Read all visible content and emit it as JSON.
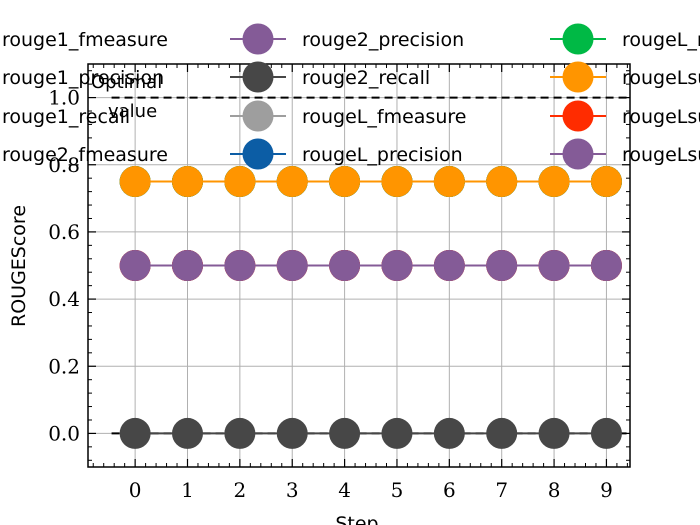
{
  "chart_data": {
    "type": "line",
    "xlabel": "Step",
    "ylabel": "ROUGEScore",
    "x": [
      0,
      1,
      2,
      3,
      4,
      5,
      6,
      7,
      8,
      9
    ],
    "xlim": [
      -0.9,
      9.45
    ],
    "ylim": [
      -0.1,
      1.1
    ],
    "xticks": [
      "0",
      "1",
      "2",
      "3",
      "4",
      "5",
      "6",
      "7",
      "8",
      "9"
    ],
    "yticks": [
      "0.0",
      "0.2",
      "0.4",
      "0.6",
      "0.8",
      "1.0"
    ],
    "grid": true,
    "legend_position": "top",
    "series": [
      {
        "name": "rouge1_fmeasure",
        "color": "#0C5DA5",
        "values": [
          0.75,
          0.75,
          0.75,
          0.75,
          0.75,
          0.75,
          0.75,
          0.75,
          0.75,
          0.75
        ]
      },
      {
        "name": "rouge1_precision",
        "color": "#00B945",
        "values": [
          0.75,
          0.75,
          0.75,
          0.75,
          0.75,
          0.75,
          0.75,
          0.75,
          0.75,
          0.75
        ]
      },
      {
        "name": "rouge1_recall",
        "color": "#FF9500",
        "values": [
          0.75,
          0.75,
          0.75,
          0.75,
          0.75,
          0.75,
          0.75,
          0.75,
          0.75,
          0.75
        ]
      },
      {
        "name": "rouge2_fmeasure",
        "color": "#FF2C00",
        "values": [
          0.5,
          0.5,
          0.5,
          0.5,
          0.5,
          0.5,
          0.5,
          0.5,
          0.5,
          0.5
        ]
      },
      {
        "name": "rouge2_precision",
        "color": "#845B97",
        "values": [
          0.5,
          0.5,
          0.5,
          0.5,
          0.5,
          0.5,
          0.5,
          0.5,
          0.5,
          0.5
        ]
      },
      {
        "name": "rouge2_recall",
        "color": "#474747",
        "values": [
          0.0,
          0.0,
          0.0,
          0.0,
          0.0,
          0.0,
          0.0,
          0.0,
          0.0,
          0.0
        ]
      },
      {
        "name": "rougeL_fmeasure",
        "color": "#9E9E9E",
        "values": [
          0.75,
          0.75,
          0.75,
          0.75,
          0.75,
          0.75,
          0.75,
          0.75,
          0.75,
          0.75
        ]
      },
      {
        "name": "rougeL_precision",
        "color": "#0C5DA5",
        "values": [
          0.75,
          0.75,
          0.75,
          0.75,
          0.75,
          0.75,
          0.75,
          0.75,
          0.75,
          0.75
        ]
      },
      {
        "name": "rougeL_recall",
        "legend_text": "rougeL_r",
        "color": "#00B945",
        "values": [
          0.75,
          0.75,
          0.75,
          0.75,
          0.75,
          0.75,
          0.75,
          0.75,
          0.75,
          0.75
        ]
      },
      {
        "name": "rougeLsum_fmeasure",
        "legend_text": "rougeLsum",
        "color": "#FF9500",
        "values": [
          0.75,
          0.75,
          0.75,
          0.75,
          0.75,
          0.75,
          0.75,
          0.75,
          0.75,
          0.75
        ]
      },
      {
        "name": "rougeLsum_precision",
        "legend_text": "rougeLsu",
        "color": "#FF2C00",
        "values": [
          0.5,
          0.5,
          0.5,
          0.5,
          0.5,
          0.5,
          0.5,
          0.5,
          0.5,
          0.5
        ]
      },
      {
        "name": "rougeLsum_recall",
        "legend_text": "rougeLsu",
        "color": "#845B97",
        "values": [
          0.5,
          0.5,
          0.5,
          0.5,
          0.5,
          0.5,
          0.5,
          0.5,
          0.5,
          0.5
        ]
      }
    ],
    "legend": [
      {
        "label": "rouge1_fmeasure",
        "color": "#0C5DA5"
      },
      {
        "label": "rouge1_precision",
        "color": "#00B945"
      },
      {
        "label": "rouge1_recall",
        "color": "#FF9500"
      },
      {
        "label": "rouge2_fmeasure",
        "color": "#FF2C00"
      },
      {
        "label": "rouge2_precision",
        "color": "#845B97"
      },
      {
        "label": "rouge2_recall",
        "color": "#474747"
      },
      {
        "label": "rougeL_fmeasure",
        "color": "#9E9E9E"
      },
      {
        "label": "rougeL_precision",
        "color": "#0C5DA5"
      },
      {
        "label": "rougeL_r",
        "color": "#00B945"
      },
      {
        "label": "rougeLsum",
        "color": "#FF9500"
      },
      {
        "label": "rougeLsu",
        "color": "#FF2C00"
      },
      {
        "label": "rougeLsu",
        "color": "#845B97"
      }
    ],
    "optimal_lines": [
      1.0,
      0.0
    ],
    "annotation": [
      "Optimal",
      "value"
    ]
  }
}
